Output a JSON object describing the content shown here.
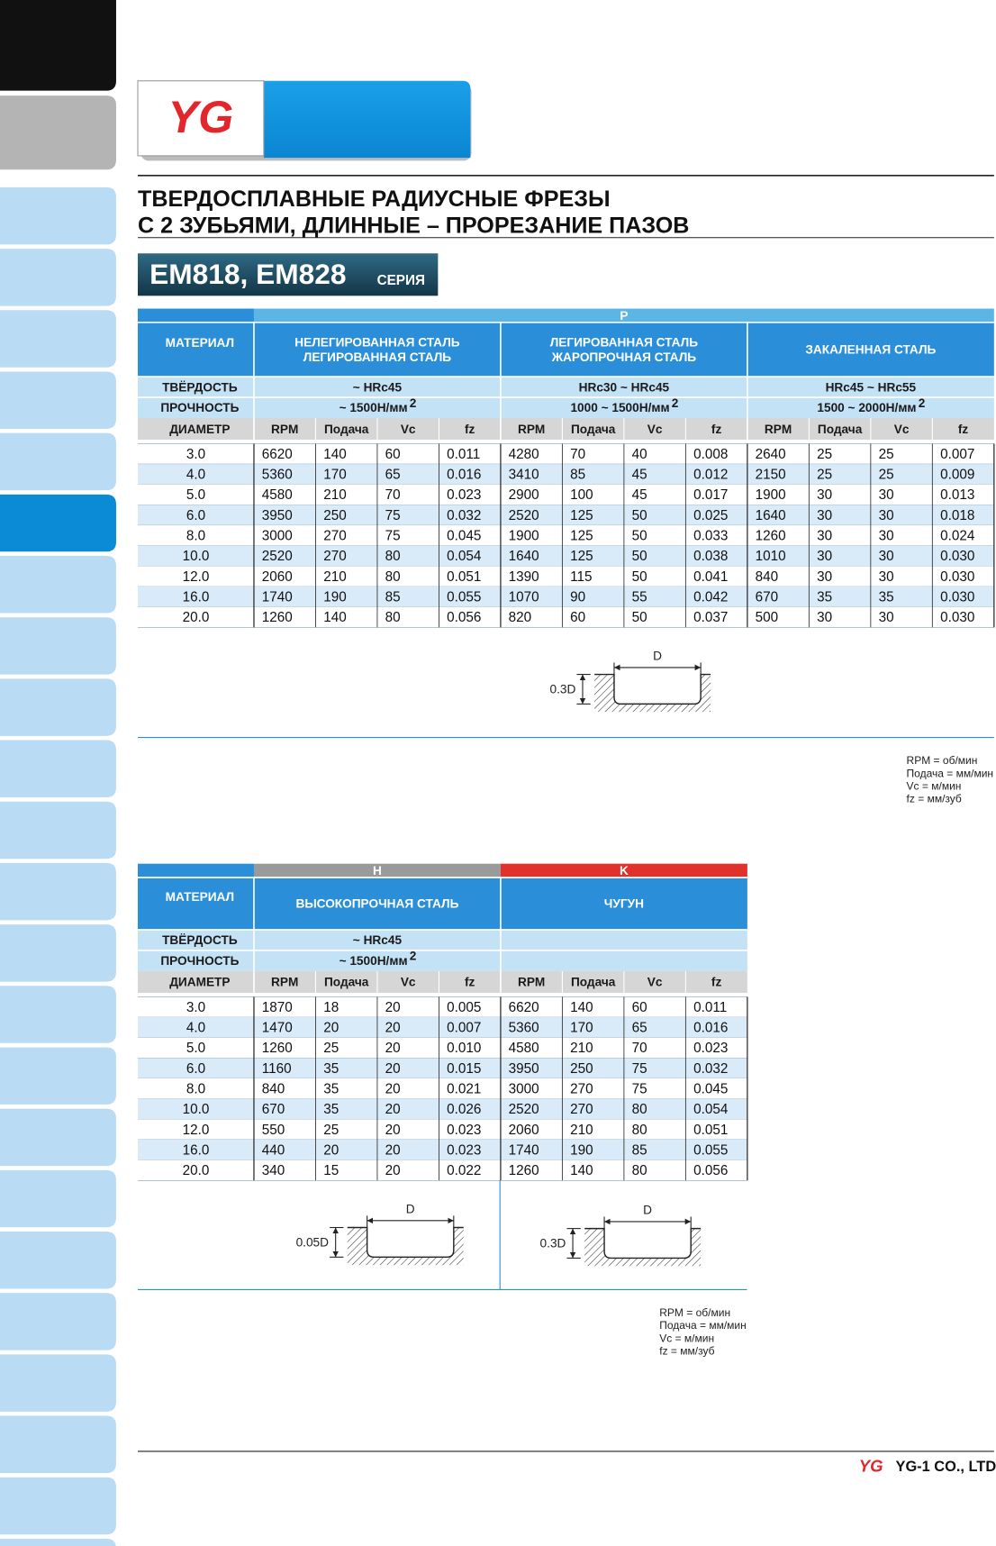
{
  "header": {
    "logo": "YG",
    "title_line1": "ТВЕРДОСПЛАВНЫЕ РАДИУСНЫЕ ФРЕЗЫ",
    "title_line2": "С 2 ЗУБЬЯМИ, ДЛИННЫЕ – ПРОРЕЗАНИЕ ПАЗОВ",
    "series": "EM818, EM828",
    "series_suffix": "СЕРИЯ"
  },
  "table1": {
    "row_labels": [
      "МАТЕРИАЛ",
      "ТВЁРДОСТЬ",
      "ПРОЧНОСТЬ",
      "ДИАМЕТР"
    ],
    "columns": [
      "RPM",
      "Подача",
      "Vc",
      "fz"
    ],
    "groups": [
      {
        "label": "P",
        "color": "#5bb6e6",
        "materials": [
          {
            "name": [
              "НЕЛЕГИРОВАННАЯ СТАЛЬ",
              "ЛЕГИРОВАННАЯ СТАЛЬ"
            ],
            "hardness": "~ HRc45",
            "strength": "~ 1500Н/мм",
            "strength_exp": "2"
          },
          {
            "name": [
              "ЛЕГИРОВАННАЯ СТАЛЬ",
              "ЖАРОПРОЧНАЯ СТАЛЬ"
            ],
            "hardness": "HRc30 ~ HRc45",
            "strength": "1000 ~ 1500Н/мм",
            "strength_exp": "2"
          },
          {
            "name": [
              "ЗАКАЛЕННАЯ СТАЛЬ"
            ],
            "hardness": "HRc45 ~ HRc55",
            "strength": "1500 ~ 2000Н/мм",
            "strength_exp": "2"
          }
        ]
      }
    ],
    "rows": [
      [
        "3.0",
        "6620",
        "140",
        "60",
        "0.011",
        "4280",
        "70",
        "40",
        "0.008",
        "2640",
        "25",
        "25",
        "0.007"
      ],
      [
        "4.0",
        "5360",
        "170",
        "65",
        "0.016",
        "3410",
        "85",
        "45",
        "0.012",
        "2150",
        "25",
        "25",
        "0.009"
      ],
      [
        "5.0",
        "4580",
        "210",
        "70",
        "0.023",
        "2900",
        "100",
        "45",
        "0.017",
        "1900",
        "30",
        "30",
        "0.013"
      ],
      [
        "6.0",
        "3950",
        "250",
        "75",
        "0.032",
        "2520",
        "125",
        "50",
        "0.025",
        "1640",
        "30",
        "30",
        "0.018"
      ],
      [
        "8.0",
        "3000",
        "270",
        "75",
        "0.045",
        "1900",
        "125",
        "50",
        "0.033",
        "1260",
        "30",
        "30",
        "0.024"
      ],
      [
        "10.0",
        "2520",
        "270",
        "80",
        "0.054",
        "1640",
        "125",
        "50",
        "0.038",
        "1010",
        "30",
        "30",
        "0.030"
      ],
      [
        "12.0",
        "2060",
        "210",
        "80",
        "0.051",
        "1390",
        "115",
        "50",
        "0.041",
        "840",
        "30",
        "30",
        "0.030"
      ],
      [
        "16.0",
        "1740",
        "190",
        "85",
        "0.055",
        "1070",
        "90",
        "55",
        "0.042",
        "670",
        "35",
        "35",
        "0.030"
      ],
      [
        "20.0",
        "1260",
        "140",
        "80",
        "0.056",
        "820",
        "60",
        "50",
        "0.037",
        "500",
        "30",
        "30",
        "0.030"
      ]
    ],
    "diagrams": [
      {
        "width_label": "D",
        "depth_label": "0.3D"
      }
    ],
    "legend": [
      "RPM = об/мин",
      "Подача = мм/мин",
      "Vc = м/мин",
      "fz = мм/зуб"
    ]
  },
  "table2": {
    "row_labels": [
      "МАТЕРИАЛ",
      "ТВЁРДОСТЬ",
      "ПРОЧНОСТЬ",
      "ДИАМЕТР"
    ],
    "columns": [
      "RPM",
      "Подача",
      "Vc",
      "fz"
    ],
    "groups": [
      {
        "label": "H",
        "color": "#9a9a9a",
        "materials": [
          {
            "name": [
              "ВЫСОКОПРОЧНАЯ СТАЛЬ"
            ],
            "hardness": "~ HRc45",
            "strength": "~ 1500Н/мм",
            "strength_exp": "2"
          }
        ]
      },
      {
        "label": "K",
        "color": "#e2302a",
        "materials": [
          {
            "name": [
              "ЧУГУН"
            ]
          }
        ]
      }
    ],
    "rows": [
      [
        "3.0",
        "1870",
        "18",
        "20",
        "0.005",
        "6620",
        "140",
        "60",
        "0.011"
      ],
      [
        "4.0",
        "1470",
        "20",
        "20",
        "0.007",
        "5360",
        "170",
        "65",
        "0.016"
      ],
      [
        "5.0",
        "1260",
        "25",
        "20",
        "0.010",
        "4580",
        "210",
        "70",
        "0.023"
      ],
      [
        "6.0",
        "1160",
        "35",
        "20",
        "0.015",
        "3950",
        "250",
        "75",
        "0.032"
      ],
      [
        "8.0",
        "840",
        "35",
        "20",
        "0.021",
        "3000",
        "270",
        "75",
        "0.045"
      ],
      [
        "10.0",
        "670",
        "35",
        "20",
        "0.026",
        "2520",
        "270",
        "80",
        "0.054"
      ],
      [
        "12.0",
        "550",
        "25",
        "20",
        "0.023",
        "2060",
        "210",
        "80",
        "0.051"
      ],
      [
        "16.0",
        "440",
        "20",
        "20",
        "0.023",
        "1740",
        "190",
        "85",
        "0.055"
      ],
      [
        "20.0",
        "340",
        "15",
        "20",
        "0.022",
        "1260",
        "140",
        "80",
        "0.056"
      ]
    ],
    "diagrams": [
      {
        "width_label": "D",
        "depth_label": "0.05D"
      },
      {
        "width_label": "D",
        "depth_label": "0.3D"
      }
    ],
    "legend": [
      "RPM = об/мин",
      "Подача = мм/мин",
      "Vc = м/мин",
      "fz = мм/зуб"
    ]
  },
  "footer": {
    "company": "YG-1 CO., LTD.",
    "logo": "YG"
  }
}
